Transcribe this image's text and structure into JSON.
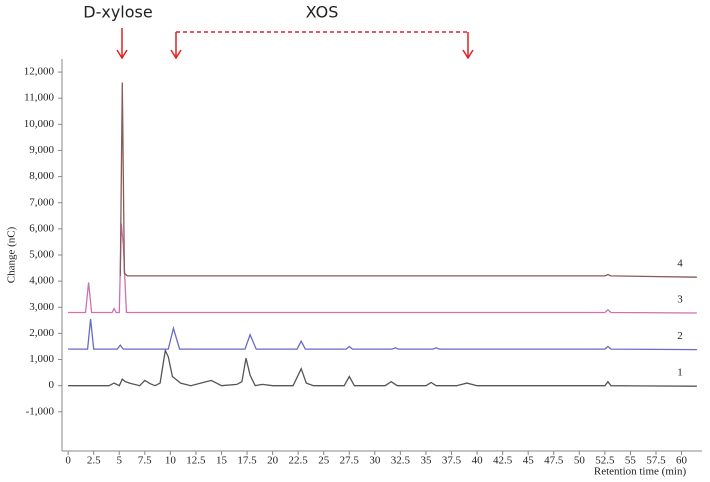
{
  "chart_data": {
    "type": "line",
    "annotations": [
      "D-xylose",
      "XOS"
    ],
    "xlabel": "Retention time (min)",
    "ylabel": "Change (nC)",
    "xlim": [
      -0.6,
      62
    ],
    "ylim": [
      -2500,
      12500
    ],
    "xticks": [
      0,
      2.5,
      5,
      7.5,
      10,
      12.5,
      15,
      17.5,
      20,
      22.5,
      25,
      27.5,
      30,
      32.5,
      35,
      37.5,
      40,
      42.5,
      45,
      47.5,
      50,
      52.5,
      55,
      57.5,
      60
    ],
    "yticks": [
      {
        "value": -1000,
        "label": "-1,000"
      },
      0,
      {
        "value": 1000,
        "label": "1,000"
      },
      {
        "value": 2000,
        "label": "2,000"
      },
      {
        "value": 3000,
        "label": "3,000"
      },
      {
        "value": 4000,
        "label": "4,000"
      },
      {
        "value": 5000,
        "label": "5,000"
      },
      {
        "value": 6000,
        "label": "6,000"
      },
      {
        "value": 7000,
        "label": "7,000"
      },
      {
        "value": 8000,
        "label": "8,000"
      },
      {
        "value": 9000,
        "label": "9,000"
      },
      {
        "value": 10000,
        "label": "10,000"
      },
      {
        "value": 11000,
        "label": "11,000"
      },
      {
        "value": 12000,
        "label": "12,000"
      }
    ],
    "series": [
      {
        "name": "1",
        "color": "#555555",
        "x": [
          0,
          4,
          4.5,
          5,
          5.3,
          5.6,
          6,
          7,
          7.5,
          8,
          8.5,
          9,
          9.5,
          9.8,
          10.2,
          11,
          12,
          14,
          15,
          16.5,
          17,
          17.4,
          17.8,
          18.3,
          19,
          20,
          22,
          22.8,
          23.3,
          24,
          27,
          27.5,
          28,
          31,
          31.6,
          32.2,
          35,
          35.5,
          36,
          38,
          39,
          40,
          52.5,
          52.8,
          53.1,
          61.5
        ],
        "values": [
          0,
          0,
          100,
          0,
          250,
          150,
          100,
          0,
          200,
          80,
          0,
          100,
          1350,
          1100,
          350,
          100,
          0,
          200,
          0,
          50,
          150,
          1050,
          400,
          0,
          50,
          0,
          0,
          650,
          100,
          0,
          0,
          350,
          0,
          0,
          150,
          0,
          0,
          120,
          0,
          0,
          100,
          0,
          0,
          150,
          0,
          -20
        ]
      },
      {
        "name": "2",
        "color": "#6a6ac8",
        "x": [
          0,
          1.9,
          2.2,
          2.5,
          4.8,
          5.1,
          5.4,
          9.8,
          10.3,
          10.9,
          17.3,
          17.8,
          18.4,
          22.4,
          22.8,
          23.2,
          27.2,
          27.5,
          27.8,
          31.7,
          32,
          32.3,
          35.7,
          36,
          36.3,
          52.5,
          52.8,
          53.1,
          61.5
        ],
        "values": [
          1400,
          1400,
          2550,
          1400,
          1400,
          1550,
          1400,
          1400,
          2200,
          1400,
          1400,
          1950,
          1400,
          1400,
          1700,
          1400,
          1400,
          1500,
          1400,
          1400,
          1450,
          1400,
          1400,
          1450,
          1400,
          1400,
          1500,
          1400,
          1380
        ]
      },
      {
        "name": "3",
        "color": "#d070b0",
        "x": [
          0,
          1.7,
          2,
          2.3,
          4.3,
          4.5,
          4.7,
          5,
          5.2,
          5.4,
          5.7,
          52.5,
          52.8,
          53.1,
          61.5
        ],
        "values": [
          2800,
          2800,
          3950,
          2800,
          2800,
          2950,
          2800,
          2800,
          6200,
          5400,
          2800,
          2800,
          2900,
          2800,
          2780
        ]
      },
      {
        "name": "4",
        "color": "#8a5a5a",
        "x": [
          5.1,
          5.3,
          5.5,
          5.8,
          52.5,
          52.8,
          53.1,
          61.5
        ],
        "values": [
          4200,
          11600,
          4300,
          4200,
          4200,
          4250,
          4200,
          4150
        ]
      }
    ]
  }
}
